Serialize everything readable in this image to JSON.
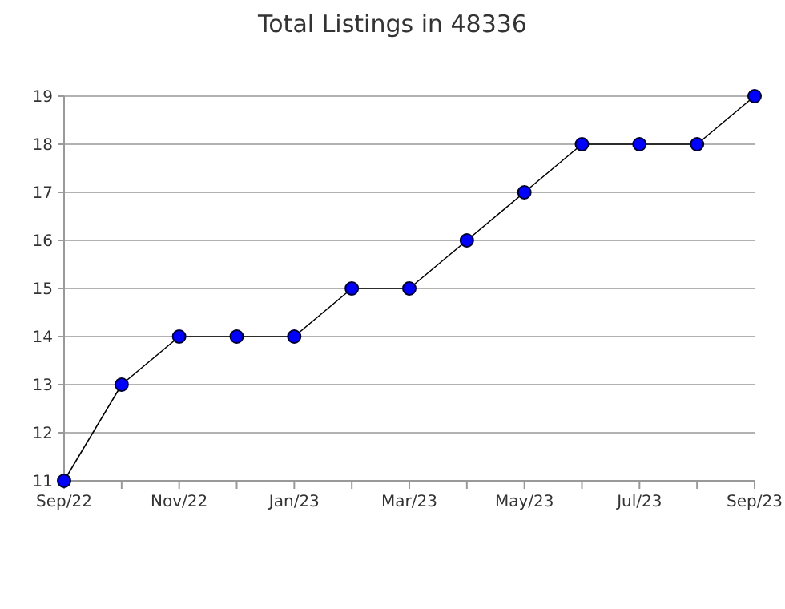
{
  "chart_data": {
    "type": "line",
    "title": "Total Listings in 48336",
    "categories": [
      "Sep/22",
      null,
      "Nov/22",
      null,
      "Jan/23",
      null,
      "Mar/23",
      null,
      "May/23",
      null,
      "Jul/23",
      null,
      "Sep/23"
    ],
    "series": [
      {
        "color": "#0000ff",
        "values": [
          11,
          13,
          14,
          14,
          14,
          15,
          15,
          16,
          17,
          18,
          18,
          18,
          19
        ]
      }
    ],
    "ylim": [
      11,
      19
    ],
    "yticks": [
      11,
      12,
      13,
      14,
      15,
      16,
      17,
      18,
      19
    ],
    "grid": "y",
    "marker": "circle",
    "line_style": "solid"
  }
}
